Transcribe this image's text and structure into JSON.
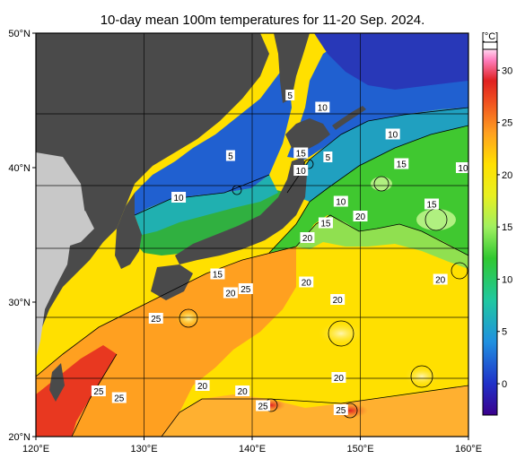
{
  "title": "10-day mean 100m temperatures for 11-20 Sep. 2024.",
  "map": {
    "lon_range": [
      120,
      160
    ],
    "lat_range": [
      20,
      50
    ],
    "lon_ticks": [
      {
        "value": 120,
        "label": "120°E"
      },
      {
        "value": 130,
        "label": "130°E"
      },
      {
        "value": 140,
        "label": "140°E"
      },
      {
        "value": 150,
        "label": "150°E"
      },
      {
        "value": 160,
        "label": "160°E"
      }
    ],
    "lat_ticks": [
      {
        "value": 50,
        "label": "50°N"
      },
      {
        "value": 40,
        "label": "40°N"
      },
      {
        "value": 30,
        "label": "30°N"
      },
      {
        "value": 20,
        "label": "20°N"
      }
    ],
    "grid": true,
    "land_color": "#4a4a4a",
    "outside_region_color": "#c8c8c8",
    "contour_labels": [
      {
        "text": "5",
        "lon": 143.5,
        "lat": 45.4
      },
      {
        "text": "10",
        "lon": 146.5,
        "lat": 44.5
      },
      {
        "text": "10",
        "lon": 153.0,
        "lat": 42.5
      },
      {
        "text": "5",
        "lon": 138.0,
        "lat": 40.9
      },
      {
        "text": "15",
        "lon": 144.5,
        "lat": 41.1
      },
      {
        "text": "5",
        "lon": 147.0,
        "lat": 40.8
      },
      {
        "text": "15",
        "lon": 153.8,
        "lat": 40.3
      },
      {
        "text": "10",
        "lon": 159.5,
        "lat": 40.0
      },
      {
        "text": "10",
        "lon": 144.5,
        "lat": 39.8
      },
      {
        "text": "10",
        "lon": 133.2,
        "lat": 37.8
      },
      {
        "text": "10",
        "lon": 148.2,
        "lat": 37.5
      },
      {
        "text": "15",
        "lon": 156.6,
        "lat": 37.3
      },
      {
        "text": "20",
        "lon": 150.0,
        "lat": 36.4
      },
      {
        "text": "15",
        "lon": 146.8,
        "lat": 35.9
      },
      {
        "text": "20",
        "lon": 145.1,
        "lat": 34.8
      },
      {
        "text": "15",
        "lon": 136.8,
        "lat": 32.1
      },
      {
        "text": "20",
        "lon": 157.4,
        "lat": 31.7
      },
      {
        "text": "20",
        "lon": 145.0,
        "lat": 31.5
      },
      {
        "text": "25",
        "lon": 139.4,
        "lat": 31.0
      },
      {
        "text": "20",
        "lon": 138.0,
        "lat": 30.7
      },
      {
        "text": "20",
        "lon": 147.9,
        "lat": 30.2
      },
      {
        "text": "25",
        "lon": 131.1,
        "lat": 28.8
      },
      {
        "text": "20",
        "lon": 148.0,
        "lat": 24.4
      },
      {
        "text": "20",
        "lon": 135.4,
        "lat": 23.8
      },
      {
        "text": "20",
        "lon": 139.1,
        "lat": 23.4
      },
      {
        "text": "25",
        "lon": 125.8,
        "lat": 23.4
      },
      {
        "text": "25",
        "lon": 127.7,
        "lat": 22.9
      },
      {
        "text": "25",
        "lon": 141.0,
        "lat": 22.3
      },
      {
        "text": "25",
        "lon": 148.2,
        "lat": 22.0
      }
    ]
  },
  "colorbar": {
    "unit": "[°C]",
    "min": -3,
    "max": 32,
    "ticks": [
      {
        "value": 30,
        "label": "30"
      },
      {
        "value": 25,
        "label": "25"
      },
      {
        "value": 20,
        "label": "20"
      },
      {
        "value": 15,
        "label": "15"
      },
      {
        "value": 10,
        "label": "10"
      },
      {
        "value": 5,
        "label": "5"
      },
      {
        "value": 0,
        "label": "0"
      }
    ],
    "color_stops": [
      {
        "value": -3,
        "color": "#3a008c"
      },
      {
        "value": 0,
        "color": "#2030c8"
      },
      {
        "value": 4,
        "color": "#2090e0"
      },
      {
        "value": 8,
        "color": "#20c8a0"
      },
      {
        "value": 12,
        "color": "#30c830"
      },
      {
        "value": 15,
        "color": "#a0f060"
      },
      {
        "value": 18,
        "color": "#e8f020"
      },
      {
        "value": 21,
        "color": "#ffe000"
      },
      {
        "value": 24,
        "color": "#ffa020"
      },
      {
        "value": 27,
        "color": "#f05020"
      },
      {
        "value": 29,
        "color": "#e02020"
      },
      {
        "value": 31,
        "color": "#ff80c0"
      },
      {
        "value": 32,
        "color": "#ffd8f0"
      }
    ]
  }
}
